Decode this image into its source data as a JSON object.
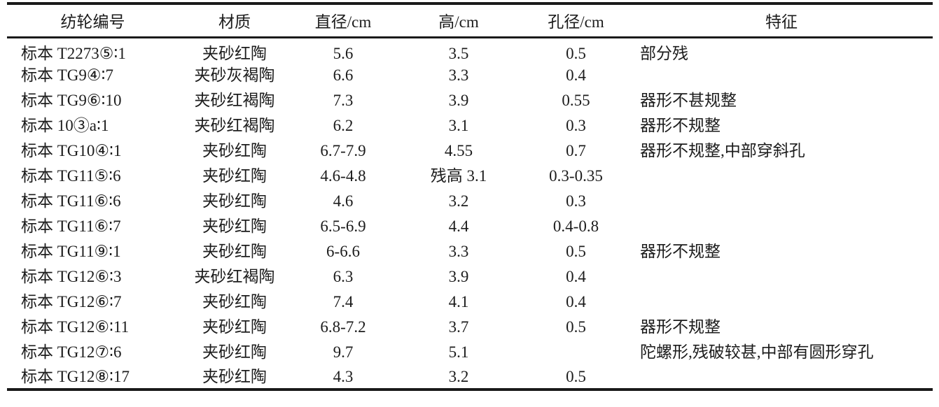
{
  "table": {
    "columns": [
      {
        "key": "id",
        "label": "纺轮编号"
      },
      {
        "key": "material",
        "label": "材质"
      },
      {
        "key": "diameter",
        "label": "直径/cm"
      },
      {
        "key": "height",
        "label": "高/cm"
      },
      {
        "key": "hole",
        "label": "孔径/cm"
      },
      {
        "key": "features",
        "label": "特征"
      }
    ],
    "rows": [
      {
        "id": "标本 T2273⑤∶1",
        "material": "夹砂红陶",
        "diameter": "5.6",
        "height": "3.5",
        "hole": "0.5",
        "features": "部分残"
      },
      {
        "id": "标本 TG9④∶7",
        "material": "夹砂灰褐陶",
        "diameter": "6.6",
        "height": "3.3",
        "hole": "0.4",
        "features": ""
      },
      {
        "id": "标本 TG9⑥∶10",
        "material": "夹砂红褐陶",
        "diameter": "7.3",
        "height": "3.9",
        "hole": "0.55",
        "features": "器形不甚规整"
      },
      {
        "id": "标本 10③a∶1",
        "material": "夹砂红褐陶",
        "diameter": "6.2",
        "height": "3.1",
        "hole": "0.3",
        "features": "器形不规整"
      },
      {
        "id": "标本 TG10④∶1",
        "material": "夹砂红陶",
        "diameter": "6.7-7.9",
        "height": "4.55",
        "hole": "0.7",
        "features": "器形不规整,中部穿斜孔"
      },
      {
        "id": "标本 TG11⑤∶6",
        "material": "夹砂红陶",
        "diameter": "4.6-4.8",
        "height": "残高 3.1",
        "hole": "0.3-0.35",
        "features": ""
      },
      {
        "id": "标本 TG11⑥∶6",
        "material": "夹砂红陶",
        "diameter": "4.6",
        "height": "3.2",
        "hole": "0.3",
        "features": ""
      },
      {
        "id": "标本 TG11⑥∶7",
        "material": "夹砂红陶",
        "diameter": "6.5-6.9",
        "height": "4.4",
        "hole": "0.4-0.8",
        "features": ""
      },
      {
        "id": "标本 TG11⑨∶1",
        "material": "夹砂红陶",
        "diameter": "6-6.6",
        "height": "3.3",
        "hole": "0.5",
        "features": "器形不规整"
      },
      {
        "id": "标本 TG12⑥∶3",
        "material": "夹砂红褐陶",
        "diameter": "6.3",
        "height": "3.9",
        "hole": "0.4",
        "features": ""
      },
      {
        "id": "标本 TG12⑥∶7",
        "material": "夹砂红陶",
        "diameter": "7.4",
        "height": "4.1",
        "hole": "0.4",
        "features": ""
      },
      {
        "id": "标本 TG12⑥∶11",
        "material": "夹砂红陶",
        "diameter": "6.8-7.2",
        "height": "3.7",
        "hole": "0.5",
        "features": "器形不规整"
      },
      {
        "id": "标本 TG12⑦∶6",
        "material": "夹砂红陶",
        "diameter": "9.7",
        "height": "5.1",
        "hole": "",
        "features": "陀螺形,残破较甚,中部有圆形穿孔"
      },
      {
        "id": "标本 TG12⑧∶17",
        "material": "夹砂红陶",
        "diameter": "4.3",
        "height": "3.2",
        "hole": "0.5",
        "features": ""
      }
    ]
  }
}
